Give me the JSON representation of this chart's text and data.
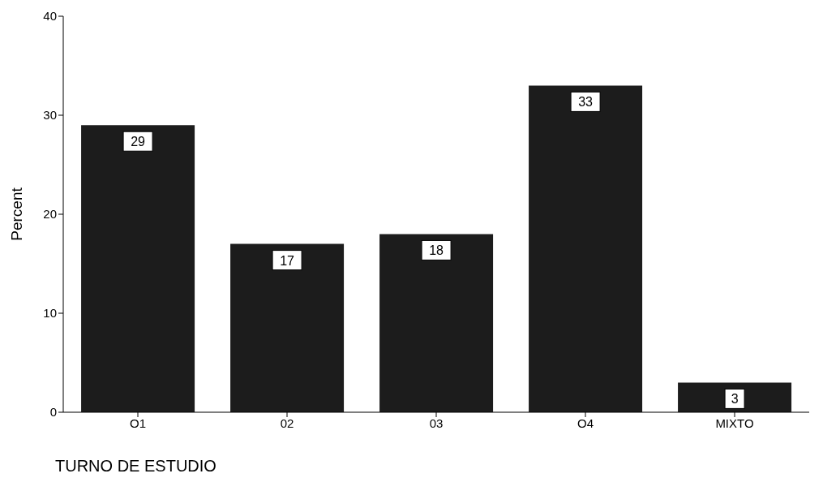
{
  "chart_data": {
    "type": "bar",
    "xlabel": "TURNO DE ESTUDIO",
    "ylabel": "Percent",
    "categories": [
      "O1",
      "02",
      "03",
      "O4",
      "MIXTO"
    ],
    "values": [
      29,
      17,
      18,
      33,
      3
    ],
    "color": "#1c1c1c",
    "ylim": [
      0,
      40
    ],
    "yticks": [
      0,
      10,
      20,
      30,
      40
    ],
    "data_labels": true
  }
}
